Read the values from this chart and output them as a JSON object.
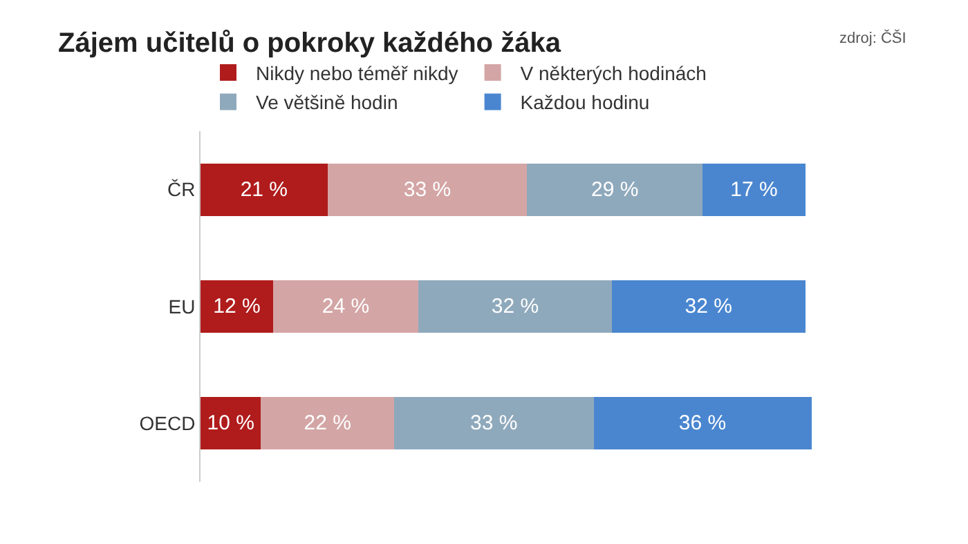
{
  "chart_data": {
    "type": "bar",
    "orientation": "horizontal",
    "stacked": true,
    "title": "Zájem učitelů o pokroky každého žáka",
    "annotations": [
      "zdroj: ČŠI"
    ],
    "categories": [
      "ČR",
      "EU",
      "OECD"
    ],
    "series": [
      {
        "name": "Nikdy nebo téměř nikdy",
        "color": "#b01c1c",
        "values": [
          21,
          12,
          10
        ],
        "value_labels": [
          "21 %",
          "12 %",
          "10 %"
        ]
      },
      {
        "name": "V některých hodinách",
        "color": "#d4a5a5",
        "values": [
          33,
          24,
          22
        ],
        "value_labels": [
          "33 %",
          "24 %",
          "22 %"
        ]
      },
      {
        "name": "Ve většině hodin",
        "color": "#8fa9bc",
        "values": [
          29,
          32,
          33
        ],
        "value_labels": [
          "29 %",
          "32 %",
          "33 %"
        ]
      },
      {
        "name": "Každou hodinu",
        "color": "#4a86d0",
        "values": [
          17,
          32,
          36
        ],
        "value_labels": [
          "17 %",
          "32 %",
          "36 %"
        ]
      }
    ],
    "legend": "top"
  }
}
